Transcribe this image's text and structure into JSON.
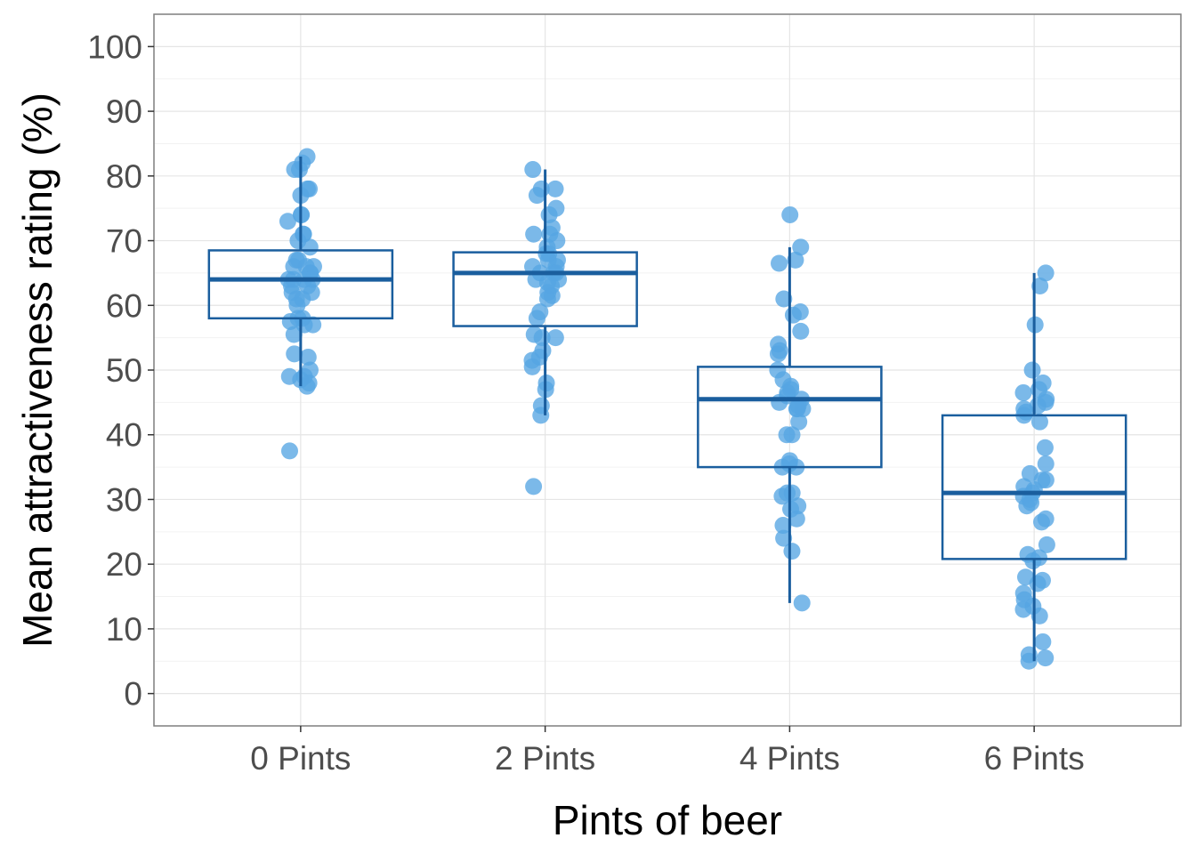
{
  "chart_data": {
    "type": "boxplot-with-jitter",
    "title": "",
    "xlabel": "Pints of beer",
    "ylabel": "Mean attractiveness rating (%)",
    "ylim": [
      -5,
      105
    ],
    "yticks": [
      0,
      10,
      20,
      30,
      40,
      50,
      60,
      70,
      80,
      90,
      100
    ],
    "ytick_labels": [
      "0",
      "10",
      "20",
      "30",
      "40",
      "50",
      "60",
      "70",
      "80",
      "90",
      "100"
    ],
    "categories": [
      "0 Pints",
      "2 Pints",
      "4 Pints",
      "6 Pints"
    ],
    "grid": true,
    "colors": {
      "box": "#1a5e9e",
      "point": "#56a5e3",
      "grid": "#e5e5e5",
      "border": "#7f7f7f"
    },
    "boxes": [
      {
        "category": "0 Pints",
        "q1": 58,
        "median": 64,
        "q3": 68.5,
        "whisker_low": 47.5,
        "whisker_high": 83
      },
      {
        "category": "2 Pints",
        "q1": 56.8,
        "median": 65,
        "q3": 68.2,
        "whisker_low": 43,
        "whisker_high": 81
      },
      {
        "category": "4 Pints",
        "q1": 35,
        "median": 45.5,
        "q3": 50.5,
        "whisker_low": 14,
        "whisker_high": 69
      },
      {
        "category": "6 Pints",
        "q1": 20.8,
        "median": 31,
        "q3": 43,
        "whisker_low": 5,
        "whisker_high": 65
      }
    ],
    "points": [
      {
        "category": "0 Pints",
        "values": [
          83,
          82,
          81,
          81,
          78,
          78,
          77,
          74,
          74,
          73,
          71,
          71,
          70,
          69,
          67,
          67,
          66,
          66,
          66,
          65,
          65,
          64,
          64,
          64,
          64,
          63,
          63,
          62,
          62,
          61,
          61,
          60,
          58,
          58,
          57.5,
          57,
          57,
          55.5,
          52.5,
          52,
          50,
          49,
          49,
          48.5,
          48,
          47.5,
          37.5
        ]
      },
      {
        "category": "2 Pints",
        "values": [
          81,
          78,
          78,
          77,
          75,
          74,
          72,
          71,
          71,
          70,
          69,
          68,
          68,
          67,
          67,
          66,
          66,
          65,
          65,
          65,
          64,
          64,
          63.5,
          63,
          62,
          61.5,
          61,
          59,
          58,
          55.5,
          55,
          55,
          53,
          52,
          51.5,
          50.5,
          48,
          47,
          44.5,
          43,
          32
        ]
      },
      {
        "category": "4 Pints",
        "values": [
          74,
          69,
          67,
          66.5,
          61,
          59,
          58.5,
          56,
          54,
          53,
          52.5,
          50,
          48.5,
          47.5,
          47,
          46.5,
          46,
          45.5,
          45,
          44.5,
          44,
          44,
          44,
          42,
          40,
          40,
          36,
          35.5,
          35,
          35,
          31,
          31,
          30.5,
          29,
          28.5,
          27,
          26,
          24,
          22,
          14
        ]
      },
      {
        "category": "6 Pints",
        "values": [
          65,
          63,
          57,
          50,
          48,
          47,
          46.5,
          45.5,
          45,
          44.5,
          44,
          43.5,
          43,
          42,
          38,
          35.5,
          34,
          33,
          33,
          32,
          31.5,
          31,
          30.5,
          30,
          29.5,
          29,
          27,
          26.5,
          23,
          21.5,
          21,
          20.5,
          18,
          17.5,
          17,
          15.5,
          14.5,
          13.5,
          13,
          12,
          8,
          6,
          5.5,
          5
        ]
      }
    ]
  }
}
